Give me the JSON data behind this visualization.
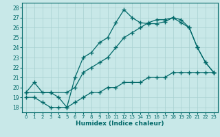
{
  "xlabel": "Humidex (Indice chaleur)",
  "bg_color": "#c8e8e8",
  "grid_color": "#a8d0d0",
  "line_color": "#006868",
  "xlim": [
    -0.5,
    23.5
  ],
  "ylim": [
    17.5,
    28.5
  ],
  "xticks": [
    0,
    1,
    2,
    3,
    4,
    5,
    6,
    7,
    8,
    9,
    10,
    11,
    12,
    13,
    14,
    15,
    16,
    17,
    18,
    19,
    20,
    21,
    22,
    23
  ],
  "yticks": [
    18,
    19,
    20,
    21,
    22,
    23,
    24,
    25,
    26,
    27,
    28
  ],
  "line1_x": [
    0,
    1,
    2,
    3,
    4,
    5,
    6,
    7,
    8,
    9,
    10,
    11,
    12,
    13,
    14,
    15,
    16,
    17,
    18,
    19,
    20,
    21,
    22,
    23
  ],
  "line1_y": [
    19.5,
    20.5,
    19.5,
    19.5,
    19.0,
    18.0,
    21.0,
    23.0,
    23.5,
    24.5,
    25.0,
    26.5,
    27.8,
    27.0,
    26.5,
    26.4,
    26.4,
    26.6,
    27.0,
    26.8,
    26.0,
    24.0,
    22.5,
    21.5
  ],
  "line2_x": [
    0,
    3,
    5,
    6,
    7,
    8,
    9,
    10,
    11,
    12,
    13,
    14,
    15,
    16,
    17,
    18,
    19,
    20,
    21,
    22,
    23
  ],
  "line2_y": [
    19.5,
    19.5,
    19.5,
    20.0,
    21.5,
    22.0,
    22.5,
    23.0,
    24.0,
    25.0,
    25.5,
    26.0,
    26.5,
    26.8,
    26.8,
    27.0,
    26.5,
    26.0,
    24.0,
    22.5,
    21.5
  ],
  "line3_x": [
    0,
    1,
    2,
    3,
    4,
    5,
    6,
    7,
    8,
    9,
    10,
    11,
    12,
    13,
    14,
    15,
    16,
    17,
    18,
    19,
    20,
    21,
    22,
    23
  ],
  "line3_y": [
    19.0,
    19.0,
    18.5,
    18.0,
    18.0,
    18.0,
    18.5,
    19.0,
    19.5,
    19.5,
    20.0,
    20.0,
    20.5,
    20.5,
    20.5,
    21.0,
    21.0,
    21.0,
    21.5,
    21.5,
    21.5,
    21.5,
    21.5,
    21.5
  ]
}
